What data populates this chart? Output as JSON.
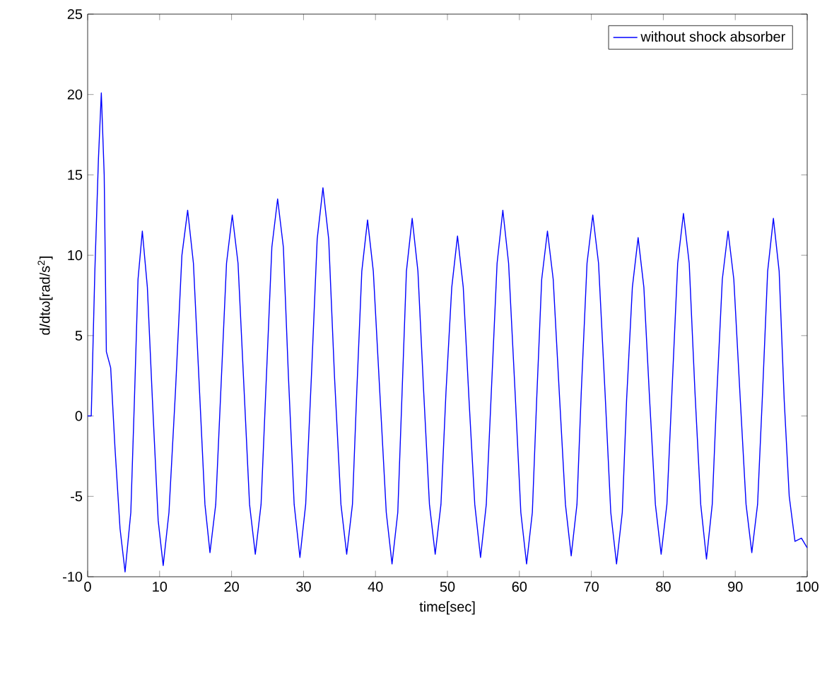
{
  "chart_data": {
    "type": "line",
    "xlabel": "time[sec]",
    "ylabel": "d/dtω[rad/s$^{2}$]",
    "xlim": [
      0,
      100
    ],
    "ylim": [
      -10,
      25
    ],
    "xticks": [
      0,
      10,
      20,
      30,
      40,
      50,
      60,
      70,
      80,
      90,
      100
    ],
    "yticks": [
      -10,
      -5,
      0,
      5,
      10,
      15,
      20,
      25
    ],
    "legend": "top right",
    "grid": false,
    "marker": "none",
    "line_style": "solid",
    "series": [
      {
        "name": "without shock absorber",
        "color": "#0000ff",
        "x": [
          0,
          0.5,
          1.0,
          1.5,
          1.9,
          2.3,
          2.6,
          3.2,
          3.8,
          4.5,
          5.2,
          6.0,
          6.5,
          7.0,
          7.6,
          8.3,
          9.0,
          9.8,
          10.5,
          11.3,
          12.2,
          13.1,
          13.9,
          14.7,
          15.5,
          16.3,
          17.0,
          17.8,
          18.5,
          19.3,
          20.1,
          20.9,
          21.7,
          22.5,
          23.3,
          24.1,
          24.8,
          25.6,
          26.4,
          27.2,
          27.9,
          28.7,
          29.5,
          30.3,
          31.1,
          31.9,
          32.7,
          33.5,
          34.3,
          35.2,
          36.0,
          36.8,
          37.4,
          38.1,
          38.9,
          39.7,
          40.6,
          41.5,
          42.3,
          43.1,
          43.7,
          44.3,
          45.1,
          45.9,
          46.7,
          47.5,
          48.3,
          49.1,
          49.8,
          50.6,
          51.4,
          52.2,
          53.0,
          53.8,
          54.6,
          55.4,
          56.1,
          56.9,
          57.7,
          58.5,
          59.4,
          60.2,
          61.0,
          61.8,
          62.4,
          63.1,
          63.9,
          64.7,
          65.6,
          66.4,
          67.2,
          68.0,
          68.6,
          69.4,
          70.2,
          71.0,
          71.9,
          72.7,
          73.5,
          74.3,
          74.9,
          75.7,
          76.5,
          77.3,
          78.1,
          78.9,
          79.7,
          80.5,
          81.2,
          82.0,
          82.8,
          83.6,
          84.4,
          85.2,
          86.0,
          86.8,
          87.4,
          88.2,
          89.0,
          89.8,
          90.7,
          91.5,
          92.3,
          93.1,
          93.8,
          94.5,
          95.3,
          96.1,
          96.8,
          97.5,
          98.3,
          99.2,
          100
        ],
        "values": [
          0,
          0,
          9,
          16,
          20.1,
          15,
          4,
          3,
          -2,
          -7,
          -9.7,
          -6,
          1,
          8.5,
          11.5,
          8,
          1,
          -6.5,
          -9.3,
          -6,
          1.5,
          10,
          12.8,
          9.5,
          2,
          -5.5,
          -8.5,
          -5.5,
          1.5,
          9.5,
          12.5,
          9.5,
          2,
          -5.5,
          -8.6,
          -5.5,
          2,
          10.5,
          13.5,
          10.5,
          2.5,
          -5.5,
          -8.8,
          -5.5,
          2.5,
          11,
          14.2,
          11,
          2.5,
          -5.5,
          -8.6,
          -5.5,
          1.5,
          9,
          12.2,
          9,
          1.5,
          -6,
          -9.2,
          -6,
          1.5,
          9,
          12.3,
          9,
          1.5,
          -5.5,
          -8.6,
          -5.5,
          1.5,
          8,
          11.2,
          8,
          1,
          -5.5,
          -8.8,
          -5.5,
          1.5,
          9.5,
          12.8,
          9.5,
          1.5,
          -6,
          -9.2,
          -6,
          1,
          8.5,
          11.5,
          8.5,
          1,
          -5.5,
          -8.7,
          -5.5,
          1.5,
          9.5,
          12.5,
          9.5,
          1.5,
          -6,
          -9.2,
          -6,
          1,
          8,
          11.1,
          8,
          1,
          -5.5,
          -8.6,
          -5.5,
          1.5,
          9.5,
          12.6,
          9.5,
          1.5,
          -5.5,
          -8.9,
          -5.5,
          1,
          8.5,
          11.5,
          8.5,
          1,
          -5.5,
          -8.5,
          -5.5,
          1.5,
          9,
          12.3,
          9,
          1,
          -5,
          -7.8,
          -7.6,
          -8.2
        ]
      }
    ]
  }
}
